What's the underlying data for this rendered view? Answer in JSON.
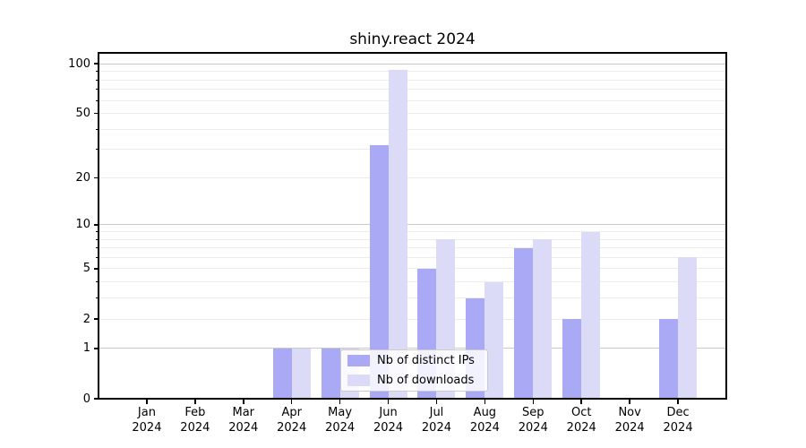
{
  "title": "shiny.react 2024",
  "chart_data": {
    "type": "bar",
    "title": "shiny.react 2024",
    "categories": [
      "Jan 2024",
      "Feb 2024",
      "Mar 2024",
      "Apr 2024",
      "May 2024",
      "Jun 2024",
      "Jul 2024",
      "Aug 2024",
      "Sep 2024",
      "Oct 2024",
      "Nov 2024",
      "Dec 2024"
    ],
    "series": [
      {
        "name": "Nb of distinct IPs",
        "color": "#a9a9f6",
        "values": [
          0,
          0,
          0,
          1,
          1,
          32,
          5,
          3,
          7,
          2,
          0,
          2
        ]
      },
      {
        "name": "Nb of downloads",
        "color": "#dbdbf8",
        "values": [
          0,
          0,
          0,
          1,
          1,
          92,
          8,
          4,
          8,
          9,
          0,
          6
        ]
      }
    ],
    "xlabel": "",
    "ylabel": "",
    "yscale": "log1p",
    "ylim": [
      0,
      116
    ],
    "yticks": [
      0,
      1,
      2,
      5,
      10,
      20,
      50,
      100
    ],
    "minor_gridlines": [
      2,
      3,
      4,
      5,
      6,
      7,
      8,
      9,
      20,
      30,
      40,
      50,
      60,
      70,
      80,
      90
    ],
    "major_gridlines": [
      1,
      10,
      100
    ],
    "grid": true,
    "legend_position": "lower center"
  },
  "legend": {
    "items": [
      {
        "label": "Nb of distinct IPs",
        "color": "#a9a9f6"
      },
      {
        "label": "Nb of downloads",
        "color": "#dbdbf8"
      }
    ]
  },
  "colors": {
    "bar_distinct_ips": "#a9a9f6",
    "bar_downloads": "#dbdbf8",
    "grid_major": "#c9c9c9",
    "grid_minor": "#ececec",
    "axis": "#000000",
    "background": "#ffffff"
  }
}
